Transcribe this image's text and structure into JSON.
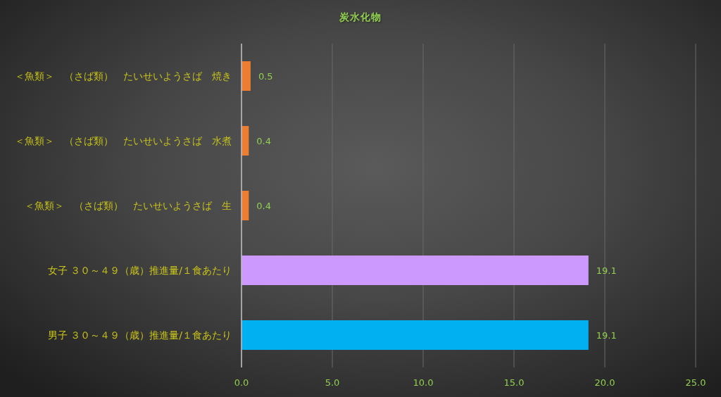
{
  "chart_data": {
    "type": "bar",
    "orientation": "horizontal",
    "title": "炭水化物",
    "categories": [
      "＜魚類＞　（さば類）　たいせいようさば　焼き",
      "＜魚類＞　（さば類）　たいせいようさば　水煮",
      "＜魚類＞　（さば類）　たいせいようさば　生",
      "女子 ３０～４９（歳）推進量/１食あたり",
      "男子 ３０～４９（歳）推進量/１食あたり"
    ],
    "values": [
      0.5,
      0.4,
      0.4,
      19.1,
      19.1
    ],
    "colors": [
      "#ed7d31",
      "#ed7d31",
      "#ed7d31",
      "#cc99ff",
      "#00b0f0"
    ],
    "xlim": [
      0,
      25
    ],
    "xticks": [
      {
        "value": 0,
        "label": "0.0"
      },
      {
        "value": 5,
        "label": "5.0"
      },
      {
        "value": 10,
        "label": "10.0"
      },
      {
        "value": 15,
        "label": "15.0"
      },
      {
        "value": 20,
        "label": "20.0"
      },
      {
        "value": 25,
        "label": "25.0"
      }
    ],
    "grid": "x",
    "data_labels": true
  }
}
